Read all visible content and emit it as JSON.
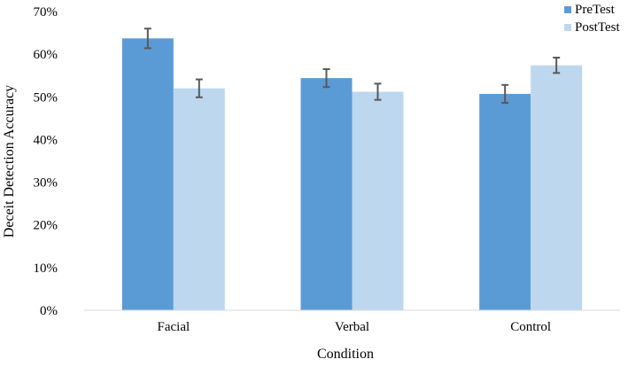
{
  "chart_data": {
    "type": "bar",
    "title": "",
    "xlabel": "Condition",
    "ylabel": "Deceit Detection Accuracy",
    "categories": [
      "Facial",
      "Verbal",
      "Control"
    ],
    "ylim": [
      0,
      0.7
    ],
    "yticks": [
      0,
      0.1,
      0.2,
      0.3,
      0.4,
      0.5,
      0.6,
      0.7
    ],
    "ytick_labels": [
      "0%",
      "10%",
      "20%",
      "30%",
      "40%",
      "50%",
      "60%",
      "70%"
    ],
    "series": [
      {
        "name": "PreTest",
        "color": "#5b9bd5",
        "values": [
          0.637,
          0.544,
          0.507
        ],
        "errors": [
          0.023,
          0.021,
          0.021
        ]
      },
      {
        "name": "PostTest",
        "color": "#bdd7ee",
        "values": [
          0.52,
          0.512,
          0.574
        ],
        "errors": [
          0.021,
          0.019,
          0.018
        ]
      }
    ],
    "legend_position": "top-right",
    "grid": false
  }
}
